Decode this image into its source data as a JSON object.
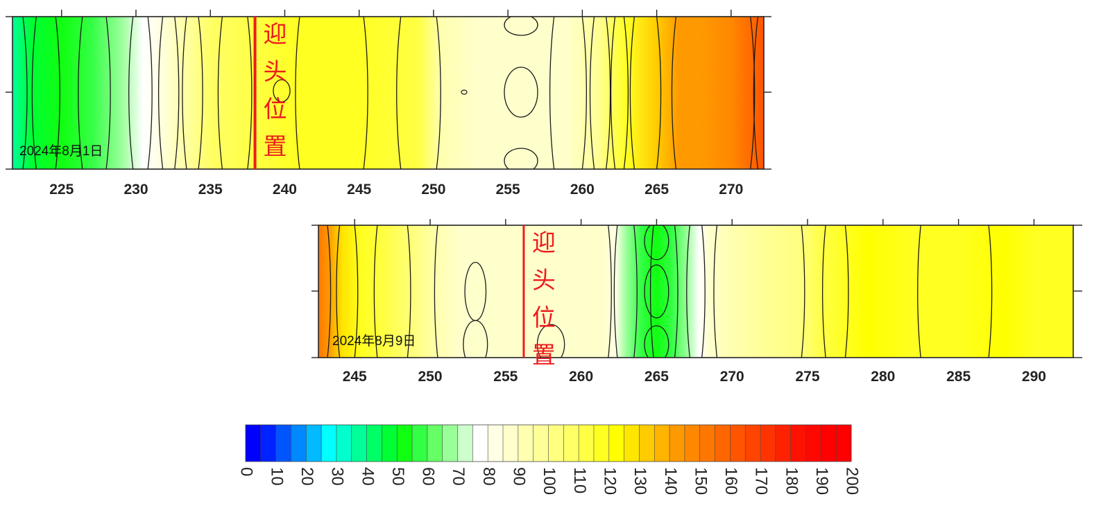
{
  "chart_data": [
    {
      "type": "heatmap",
      "title": "",
      "date_label": "2024年8月1日",
      "marker": {
        "x": 238,
        "label": "迎头位置"
      },
      "xlim": [
        221.7,
        272.2
      ],
      "x_ticks": [
        225,
        230,
        235,
        240,
        245,
        250,
        255,
        260,
        265,
        270
      ],
      "x_tick_labels": [
        "225",
        "230",
        "235",
        "240",
        "245",
        "250",
        "255",
        "260",
        "265",
        "270"
      ],
      "profile": {
        "x": [
          221.7,
          223,
          225,
          227,
          229,
          230.5,
          231.5,
          233,
          235,
          238,
          241,
          245,
          249,
          250.5,
          253,
          256,
          259,
          261,
          263,
          265,
          266.5,
          268,
          270,
          271.5,
          272.2
        ],
        "values": [
          35,
          45,
          52,
          58,
          67,
          77,
          81,
          92,
          108,
          113,
          115,
          116,
          112,
          90,
          89,
          86,
          88,
          97,
          115,
          132,
          140,
          143,
          148,
          156,
          162
        ]
      },
      "contour_lines_x": [
        222.4,
        223.3,
        224.6,
        226.4,
        228.0,
        229.8,
        230.8,
        231.8,
        232.6,
        233.4,
        234.2,
        235.8,
        237.5,
        241.0,
        245.3,
        247.8,
        250.2,
        258.1,
        260.0,
        260.8,
        261.6,
        262.2,
        262.8,
        263.5,
        265.0,
        266.3,
        271.3,
        271.8
      ]
    },
    {
      "type": "heatmap",
      "title": "",
      "date_label": "2024年8月9日",
      "marker": {
        "x": 256.2,
        "label": "迎头位置"
      },
      "xlim": [
        242.6,
        292.6
      ],
      "x_ticks": [
        245,
        250,
        255,
        260,
        265,
        270,
        275,
        280,
        285,
        290
      ],
      "x_tick_labels": [
        "245",
        "250",
        "255",
        "260",
        "265",
        "270",
        "275",
        "280",
        "285",
        "290"
      ],
      "profile": {
        "x": [
          242.6,
          243.3,
          244.2,
          245.5,
          247,
          249,
          250.5,
          252,
          254,
          256,
          258,
          260,
          261.5,
          262.3,
          263,
          264,
          265,
          266,
          267,
          267.8,
          268.5,
          270,
          272,
          274.5,
          276,
          277.5,
          279,
          282,
          285,
          288,
          290,
          292.6
        ],
        "values": [
          150,
          140,
          128,
          118,
          110,
          102,
          92,
          87,
          86,
          87,
          86,
          88,
          85,
          80,
          68,
          58,
          53,
          57,
          65,
          75,
          85,
          92,
          96,
          100,
          110,
          116,
          120,
          117,
          119,
          121,
          117,
          115
        ]
      },
      "contour_lines_x": [
        243.2,
        244.0,
        245.0,
        246.5,
        248.5,
        250.5,
        261.8,
        262.4,
        263.5,
        264.8,
        266.2,
        267.2,
        268.0,
        269.0,
        274.6,
        276.2,
        277.5,
        282.5,
        287.0
      ],
      "closed_contours": [
        {
          "x": 253.0,
          "y": 0.5,
          "rx": 0.7,
          "ry": 0.22
        },
        {
          "x": 253.0,
          "y": 0.9,
          "rx": 0.8,
          "ry": 0.18
        },
        {
          "x": 258.0,
          "y": 0.9,
          "rx": 0.9,
          "ry": 0.15
        },
        {
          "x": 265.0,
          "y": 0.5,
          "rx": 0.8,
          "ry": 0.2
        },
        {
          "x": 265.0,
          "y": 0.12,
          "rx": 0.8,
          "ry": 0.14
        },
        {
          "x": 265.0,
          "y": 0.9,
          "rx": 0.8,
          "ry": 0.14
        }
      ]
    }
  ],
  "colorbar": {
    "min": 0,
    "max": 200,
    "tick_labels": [
      "0",
      "10",
      "20",
      "30",
      "40",
      "50",
      "60",
      "70",
      "80",
      "90",
      "100",
      "110",
      "120",
      "130",
      "140",
      "150",
      "160",
      "170",
      "180",
      "190",
      "200"
    ],
    "colors": [
      "#0000ff",
      "#0022ff",
      "#0055ff",
      "#0088ff",
      "#00bbff",
      "#00ffff",
      "#00ffcc",
      "#00ff99",
      "#00ff66",
      "#00ff33",
      "#11ff11",
      "#33ff44",
      "#66ff66",
      "#99ff99",
      "#ccffcc",
      "#ffffff",
      "#ffffe5",
      "#ffffcc",
      "#ffffb0",
      "#ffff99",
      "#ffff80",
      "#ffff66",
      "#ffff44",
      "#ffff22",
      "#ffff00",
      "#ffe600",
      "#ffcc00",
      "#ffb400",
      "#ff9900",
      "#ff8800",
      "#ff7700",
      "#ff6600",
      "#ff5500",
      "#ff4400",
      "#ff3300",
      "#ff2200",
      "#ff1100",
      "#ff0800",
      "#ff0000",
      "#ff0000"
    ]
  }
}
